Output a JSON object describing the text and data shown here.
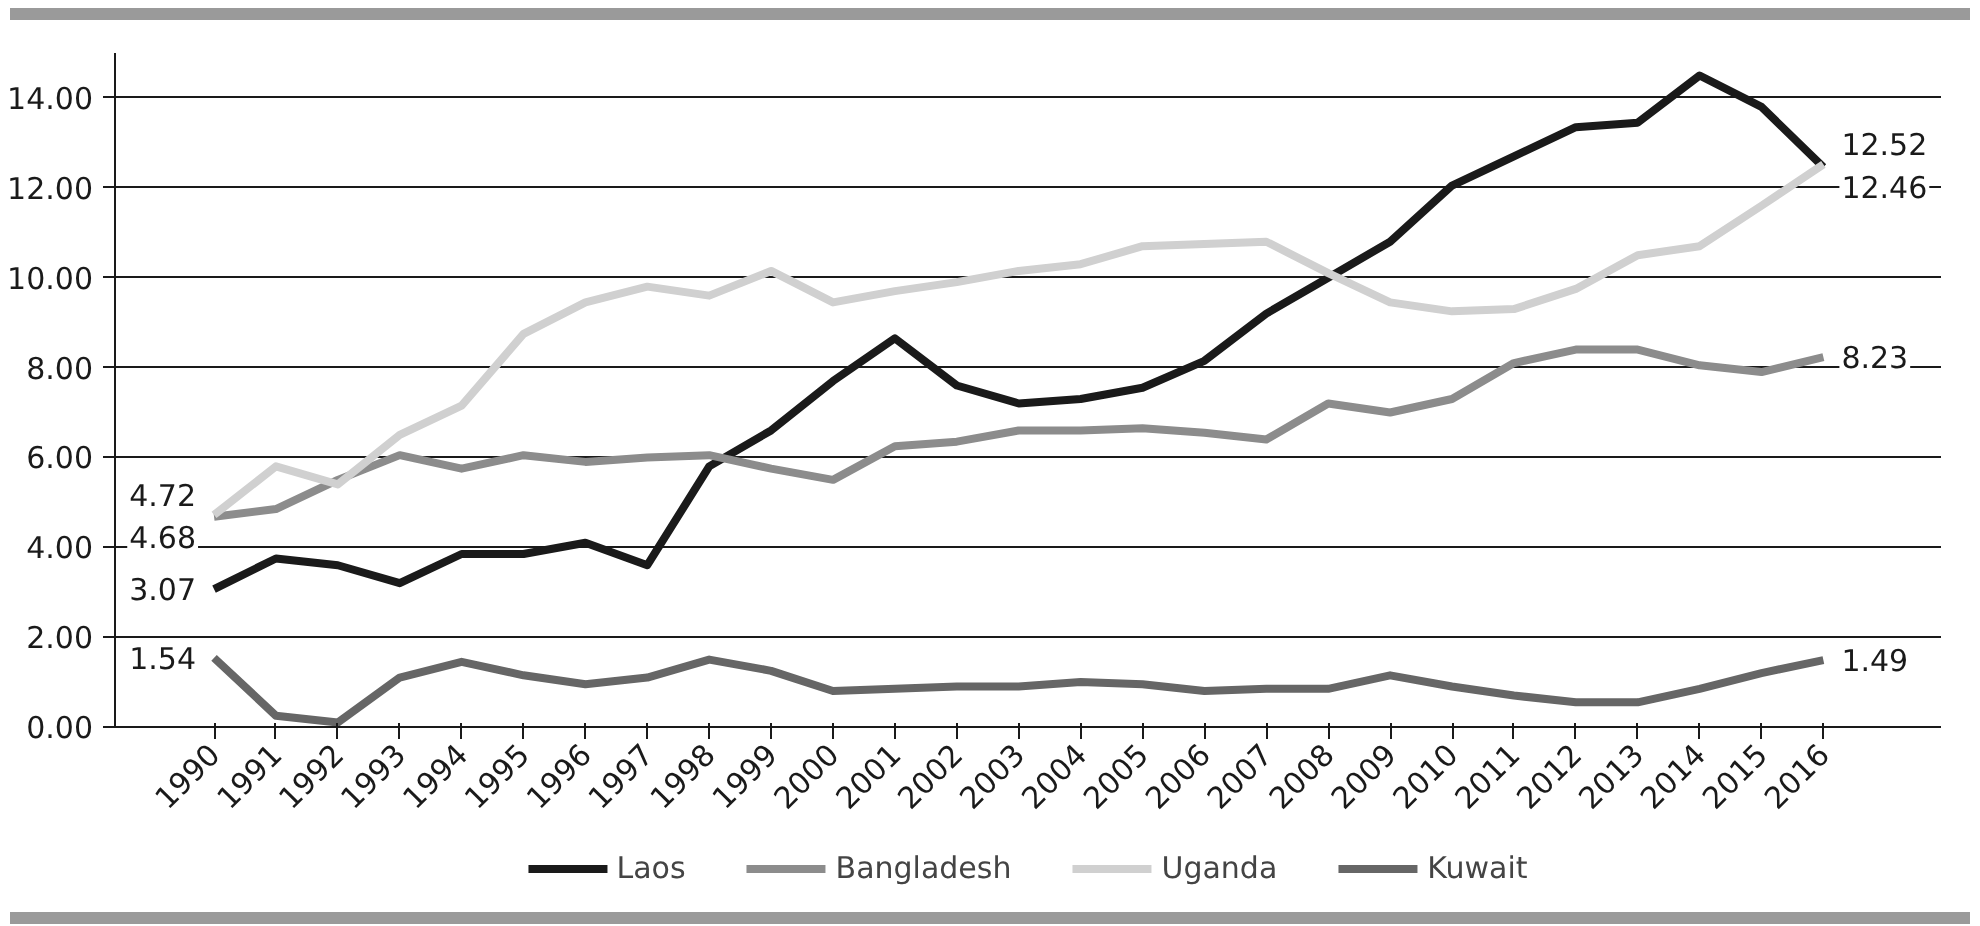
{
  "chart_data": {
    "type": "line",
    "categories": [
      "1990",
      "1991",
      "1992",
      "1993",
      "1994",
      "1995",
      "1996",
      "1997",
      "1998",
      "1999",
      "2000",
      "2001",
      "2002",
      "2003",
      "2004",
      "2005",
      "2006",
      "2007",
      "2008",
      "2009",
      "2010",
      "2011",
      "2012",
      "2013",
      "2014",
      "2015",
      "2016"
    ],
    "series": [
      {
        "name": "Laos",
        "color": "#1a1a1a",
        "values": [
          3.07,
          3.75,
          3.6,
          3.2,
          3.85,
          3.85,
          4.1,
          3.6,
          5.8,
          6.6,
          7.7,
          8.65,
          7.6,
          7.2,
          7.3,
          7.55,
          8.15,
          9.2,
          10.0,
          10.8,
          12.05,
          12.7,
          13.35,
          13.45,
          14.5,
          13.8,
          12.46
        ],
        "value_labels": [
          "3.07",
          null,
          null,
          null,
          null,
          null,
          null,
          null,
          null,
          null,
          null,
          null,
          null,
          null,
          null,
          null,
          null,
          null,
          null,
          null,
          null,
          null,
          null,
          null,
          null,
          null,
          "12.46"
        ]
      },
      {
        "name": "Bangladesh",
        "color": "#8c8c8c",
        "values": [
          4.68,
          4.85,
          5.5,
          6.05,
          5.75,
          6.05,
          5.9,
          6.0,
          6.05,
          5.75,
          5.5,
          6.25,
          6.35,
          6.6,
          6.6,
          6.65,
          6.55,
          6.4,
          7.2,
          7.0,
          7.3,
          8.1,
          8.4,
          8.4,
          8.05,
          7.9,
          8.23
        ],
        "value_labels": [
          "4.68",
          null,
          null,
          null,
          null,
          null,
          null,
          null,
          null,
          null,
          null,
          null,
          null,
          null,
          null,
          null,
          null,
          null,
          null,
          null,
          null,
          null,
          null,
          null,
          null,
          null,
          "8.23"
        ]
      },
      {
        "name": "Uganda",
        "color": "#d0d0d0",
        "values": [
          4.72,
          5.8,
          5.4,
          6.5,
          7.15,
          8.75,
          9.45,
          9.8,
          9.6,
          10.15,
          9.45,
          9.7,
          9.9,
          10.15,
          10.3,
          10.7,
          10.75,
          10.8,
          10.1,
          9.45,
          9.25,
          9.3,
          9.75,
          10.5,
          10.7,
          11.6,
          12.52
        ],
        "value_labels": [
          "4.72",
          null,
          null,
          null,
          null,
          null,
          null,
          null,
          null,
          null,
          null,
          null,
          null,
          null,
          null,
          null,
          null,
          null,
          null,
          null,
          null,
          null,
          null,
          null,
          null,
          null,
          "12.52"
        ]
      },
      {
        "name": "Kuwait",
        "color": "#666666",
        "values": [
          1.54,
          0.25,
          0.1,
          1.1,
          1.45,
          1.15,
          0.95,
          1.1,
          1.5,
          1.25,
          0.8,
          0.85,
          0.9,
          0.9,
          1.0,
          0.95,
          0.8,
          0.85,
          0.85,
          1.15,
          0.9,
          0.7,
          0.55,
          0.55,
          0.85,
          1.2,
          1.49
        ],
        "value_labels": [
          "1.54",
          null,
          null,
          null,
          null,
          null,
          null,
          null,
          null,
          null,
          null,
          null,
          null,
          null,
          null,
          null,
          null,
          null,
          null,
          null,
          null,
          null,
          null,
          null,
          null,
          null,
          "1.49"
        ]
      }
    ],
    "ylim": [
      0,
      15
    ],
    "yticks": [
      {
        "value": 0,
        "label": "0.00"
      },
      {
        "value": 2,
        "label": "2.00"
      },
      {
        "value": 4,
        "label": "4.00"
      },
      {
        "value": 6,
        "label": "6.00"
      },
      {
        "value": 8,
        "label": "8.00"
      },
      {
        "value": 10,
        "label": "10.00"
      },
      {
        "value": 12,
        "label": "12.00"
      },
      {
        "value": 14,
        "label": "14.00"
      }
    ],
    "grid": "y",
    "legend": "bottom",
    "line_style": "solid",
    "marker": "none"
  }
}
